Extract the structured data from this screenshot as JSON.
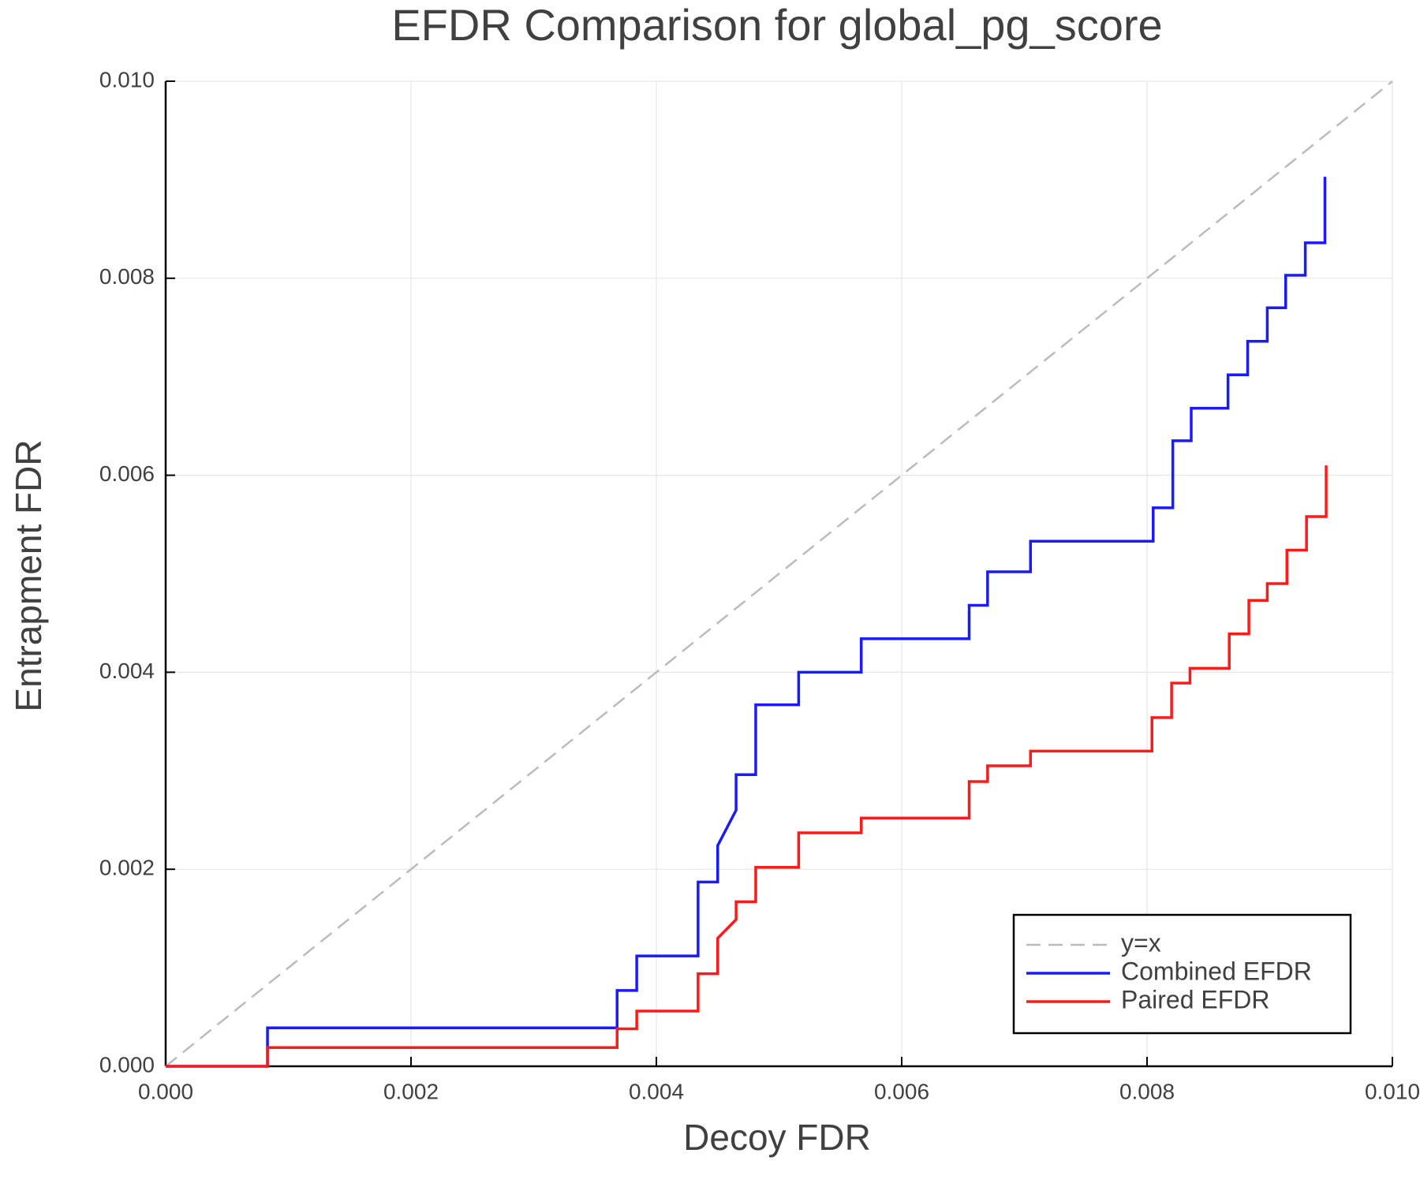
{
  "chart_data": {
    "type": "line",
    "title": "EFDR Comparison for global_pg_score",
    "xlabel": "Decoy FDR",
    "ylabel": "Entrapment FDR",
    "xlim": [
      0,
      0.01
    ],
    "ylim": [
      0,
      0.01
    ],
    "xticks": [
      {
        "value": 0,
        "label": "0.000"
      },
      {
        "value": 0.002,
        "label": "0.002"
      },
      {
        "value": 0.004,
        "label": "0.004"
      },
      {
        "value": 0.006,
        "label": "0.006"
      },
      {
        "value": 0.008,
        "label": "0.008"
      },
      {
        "value": 0.01,
        "label": "0.010"
      }
    ],
    "yticks": [
      {
        "value": 0,
        "label": "0.000"
      },
      {
        "value": 0.002,
        "label": "0.002"
      },
      {
        "value": 0.004,
        "label": "0.004"
      },
      {
        "value": 0.006,
        "label": "0.006"
      },
      {
        "value": 0.008,
        "label": "0.008"
      },
      {
        "value": 0.01,
        "label": "0.010"
      }
    ],
    "grid": true,
    "legend": "lower right",
    "series": [
      {
        "name": "y=x",
        "color": "#bbbbbb",
        "style": "dashed",
        "x": [
          0,
          0.01
        ],
        "values": [
          0,
          0.01
        ]
      },
      {
        "name": "Combined EFDR",
        "color": "#1a1aff",
        "style": "solid",
        "x": [
          0,
          0.00083,
          0.00083,
          0.00368,
          0.00368,
          0.00384,
          0.00384,
          0.00434,
          0.00434,
          0.0045,
          0.0045,
          0.00465,
          0.00465,
          0.00481,
          0.00481,
          0.00516,
          0.00516,
          0.00567,
          0.00567,
          0.00655,
          0.00655,
          0.0067,
          0.0067,
          0.00705,
          0.00705,
          0.00805,
          0.00805,
          0.00821,
          0.00821,
          0.00836,
          0.00836,
          0.00866,
          0.00866,
          0.00882,
          0.00882,
          0.00898,
          0.00898,
          0.00913,
          0.00913,
          0.00929,
          0.00929,
          0.00945,
          0.00945
        ],
        "values": [
          0,
          0,
          0.00039,
          0.00039,
          0.00077,
          0.00077,
          0.00112,
          0.00112,
          0.00187,
          0.00187,
          0.00224,
          0.0026,
          0.00296,
          0.00296,
          0.00367,
          0.00367,
          0.004,
          0.004,
          0.00434,
          0.00434,
          0.00468,
          0.00468,
          0.00502,
          0.00502,
          0.00533,
          0.00533,
          0.00567,
          0.00567,
          0.00635,
          0.00635,
          0.00668,
          0.00668,
          0.00702,
          0.00702,
          0.00736,
          0.00736,
          0.0077,
          0.0077,
          0.00803,
          0.00803,
          0.00836,
          0.00836,
          0.00903
        ]
      },
      {
        "name": "Paired EFDR",
        "color": "#ff1a1a",
        "style": "solid",
        "x": [
          0,
          0.00083,
          0.00083,
          0.00368,
          0.00368,
          0.00384,
          0.00384,
          0.00434,
          0.00434,
          0.0045,
          0.0045,
          0.00465,
          0.00465,
          0.00481,
          0.00481,
          0.00516,
          0.00516,
          0.00567,
          0.00567,
          0.00655,
          0.00655,
          0.0067,
          0.0067,
          0.00705,
          0.00705,
          0.00804,
          0.00804,
          0.0082,
          0.0082,
          0.00835,
          0.00835,
          0.00867,
          0.00867,
          0.00883,
          0.00883,
          0.00898,
          0.00898,
          0.00914,
          0.00914,
          0.0093,
          0.0093,
          0.00946,
          0.00946
        ],
        "values": [
          0,
          0,
          0.00019,
          0.00019,
          0.00038,
          0.00038,
          0.00056,
          0.00056,
          0.00094,
          0.00094,
          0.0013,
          0.00149,
          0.00167,
          0.00167,
          0.00202,
          0.00202,
          0.00237,
          0.00237,
          0.00252,
          0.00252,
          0.00289,
          0.00289,
          0.00305,
          0.00305,
          0.0032,
          0.0032,
          0.00354,
          0.00354,
          0.00389,
          0.00389,
          0.00404,
          0.00404,
          0.00439,
          0.00439,
          0.00473,
          0.00473,
          0.0049,
          0.0049,
          0.00524,
          0.00524,
          0.00558,
          0.00558,
          0.0061
        ]
      }
    ]
  }
}
